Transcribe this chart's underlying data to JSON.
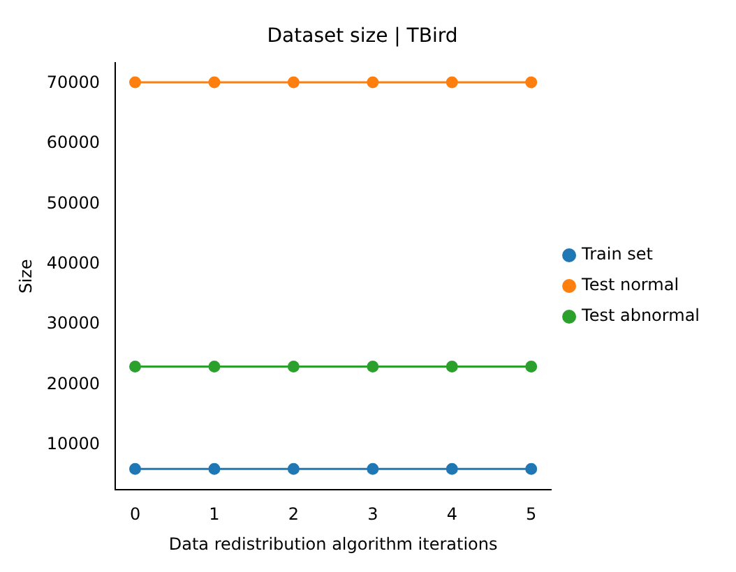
{
  "chart_data": {
    "type": "line",
    "title": "Dataset size | TBird",
    "xlabel": "Data redistribution algorithm iterations",
    "ylabel": "Size",
    "x": [
      0,
      1,
      2,
      3,
      4,
      5
    ],
    "xlim": [
      -0.25,
      5.25
    ],
    "xticks": [
      0,
      1,
      2,
      3,
      4,
      5
    ],
    "ylim": [
      2500,
      73500
    ],
    "yticks": [
      10000,
      20000,
      30000,
      40000,
      50000,
      60000,
      70000
    ],
    "marker": "circle",
    "legend": "right",
    "grid": false,
    "series": [
      {
        "name": "Train set",
        "color": "#1f77b4",
        "values": [
          6000,
          6000,
          6000,
          6000,
          6000,
          6000
        ]
      },
      {
        "name": "Test normal",
        "color": "#ff7f0e",
        "values": [
          70200,
          70200,
          70200,
          70200,
          70200,
          70200
        ]
      },
      {
        "name": "Test abnormal",
        "color": "#2ca02c",
        "values": [
          23000,
          23000,
          23000,
          23000,
          23000,
          23000
        ]
      }
    ]
  }
}
